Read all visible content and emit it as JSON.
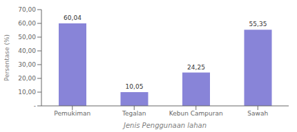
{
  "chart_data": {
    "type": "bar",
    "categories": [
      "Pemukiman",
      "Tegalan",
      "Kebun Campuran",
      "Sawah"
    ],
    "values": [
      60.04,
      10.05,
      24.25,
      55.35
    ],
    "value_labels": [
      "60,04",
      "10,05",
      "24,25",
      "55,35"
    ],
    "data_labels": true,
    "xlabel": "Jenis Penggunaan lahan",
    "ylabel": "Persentase (%)",
    "ylim": [
      0,
      70
    ],
    "yticks": [
      {
        "value": 0,
        "label": "-"
      },
      {
        "value": 10,
        "label": "10,00"
      },
      {
        "value": 20,
        "label": "20,00"
      },
      {
        "value": 30,
        "label": "30,00"
      },
      {
        "value": 40,
        "label": "40,00"
      },
      {
        "value": 50,
        "label": "50,00"
      },
      {
        "value": 60,
        "label": "60,00"
      },
      {
        "value": 70,
        "label": "70,00"
      }
    ],
    "color": "#8884d8",
    "grid": false
  }
}
